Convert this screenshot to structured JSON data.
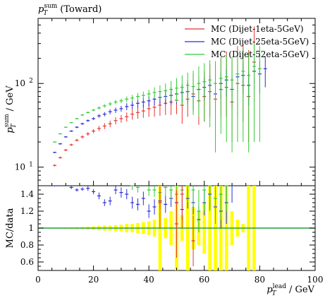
{
  "chart_data": {
    "type": "scatter",
    "title": "p_T^sum (Toward)",
    "title_main": "p",
    "title_sub": "T",
    "title_sup": "sum",
    "title_rest": "(Toward)",
    "xlabel_main": "p",
    "xlabel_sub": "T",
    "xlabel_sup": "lead",
    "xlabel_unit": "/ GeV",
    "ylabel_main": "p",
    "ylabel_sub": "T",
    "ylabel_sup": "sum",
    "ylabel_unit": "/ GeV",
    "ratio_ylabel": "MC/data",
    "xlim": [
      0,
      100
    ],
    "ylim_log": [
      6,
      600
    ],
    "ratio_ylim": [
      0.5,
      1.5
    ],
    "x_ticks": [
      0,
      20,
      40,
      60,
      80,
      100
    ],
    "y_ticks": [
      {
        "v": 10,
        "label": "10",
        "exp": "1"
      },
      {
        "v": 100,
        "label": "10",
        "exp": "2"
      }
    ],
    "ratio_ticks": [
      {
        "v": 0.6,
        "label": "0.6"
      },
      {
        "v": 0.8,
        "label": "0.8"
      },
      {
        "v": 1.0,
        "label": "1"
      },
      {
        "v": 1.2,
        "label": "1.2"
      },
      {
        "v": 1.4,
        "label": "1.4"
      }
    ],
    "legend_position": "top-right",
    "series": [
      {
        "name": "MC (Dijet-1eta-5GeV)",
        "color": "#e8312f",
        "x": [
          6,
          8,
          10,
          12,
          14,
          16,
          18,
          20,
          22,
          24,
          26,
          28,
          30,
          32,
          34,
          36,
          38,
          40,
          42,
          44,
          46,
          48,
          50,
          52,
          54,
          56,
          58,
          60,
          62,
          64,
          66,
          68,
          70,
          72,
          74,
          76,
          78
        ],
        "y": [
          10.5,
          13,
          16,
          18.5,
          21,
          23,
          25,
          27,
          29,
          31,
          33,
          36,
          38,
          40,
          43,
          45,
          47,
          50,
          52,
          55,
          58,
          60,
          63,
          55,
          65,
          75,
          62,
          70,
          80,
          65,
          85,
          90,
          60,
          100,
          95,
          70,
          180
        ],
        "err_lo": [
          0.3,
          0.4,
          0.5,
          0.6,
          0.8,
          1,
          1.2,
          1.5,
          2,
          2.5,
          3,
          3.5,
          4,
          5,
          6,
          7,
          8,
          10,
          12,
          14,
          16,
          18,
          20,
          22,
          25,
          30,
          30,
          35,
          40,
          40,
          45,
          50,
          40,
          60,
          60,
          50,
          120
        ],
        "err_hi": [
          0.3,
          0.4,
          0.5,
          0.6,
          0.8,
          1,
          1.2,
          1.5,
          2,
          2.5,
          3,
          3.5,
          4,
          5,
          6,
          7,
          8,
          10,
          15,
          20,
          25,
          30,
          35,
          40,
          45,
          55,
          60,
          70,
          90,
          100,
          120,
          150,
          130,
          180,
          200,
          180,
          300
        ]
      },
      {
        "name": "MC (Dijet-25eta-5GeV)",
        "color": "#2b2bd9",
        "x": [
          6,
          8,
          10,
          12,
          14,
          16,
          18,
          20,
          22,
          24,
          26,
          28,
          30,
          32,
          34,
          36,
          38,
          40,
          42,
          44,
          46,
          48,
          50,
          52,
          54,
          56,
          58,
          60,
          62,
          64,
          66,
          68,
          70,
          72,
          74,
          76,
          78,
          80,
          82
        ],
        "y": [
          15,
          19,
          23,
          27,
          30,
          33,
          36,
          38,
          41,
          43,
          46,
          48,
          50,
          53,
          55,
          58,
          60,
          62,
          65,
          68,
          70,
          72,
          75,
          78,
          80,
          70,
          85,
          90,
          95,
          75,
          100,
          110,
          85,
          120,
          125,
          95,
          140,
          130,
          150
        ],
        "err_lo": [
          0.3,
          0.4,
          0.5,
          0.6,
          0.8,
          1,
          1.2,
          1.5,
          2,
          2.5,
          3,
          3.5,
          4,
          5,
          6,
          7,
          8,
          9,
          10,
          12,
          14,
          16,
          18,
          20,
          22,
          22,
          25,
          28,
          30,
          28,
          35,
          40,
          35,
          45,
          50,
          40,
          55,
          55,
          60
        ],
        "err_hi": [
          0.3,
          0.4,
          0.5,
          0.6,
          0.8,
          1,
          1.2,
          1.5,
          2,
          2.5,
          3,
          3.5,
          4,
          5,
          6,
          7,
          8,
          9,
          10,
          12,
          14,
          16,
          18,
          20,
          22,
          22,
          25,
          28,
          30,
          28,
          35,
          40,
          35,
          45,
          50,
          40,
          55,
          55,
          60
        ]
      },
      {
        "name": "MC (Dijet-52eta-5GeV)",
        "color": "#33cc33",
        "x": [
          6,
          8,
          10,
          12,
          14,
          16,
          18,
          20,
          22,
          24,
          26,
          28,
          30,
          32,
          34,
          36,
          38,
          40,
          42,
          44,
          46,
          48,
          50,
          52,
          54,
          56,
          58,
          60,
          62,
          64,
          66,
          68,
          70,
          72,
          74,
          76,
          78,
          80
        ],
        "y": [
          20,
          25,
          30,
          34,
          38,
          42,
          45,
          48,
          51,
          54,
          57,
          60,
          62,
          65,
          67,
          70,
          72,
          75,
          78,
          80,
          82,
          85,
          88,
          90,
          95,
          92,
          100,
          105,
          110,
          100,
          115,
          120,
          110,
          130,
          140,
          125,
          160,
          150
        ],
        "err_lo": [
          0.3,
          0.4,
          0.5,
          0.6,
          0.8,
          1,
          1.2,
          1.5,
          2,
          2.5,
          3,
          3.5,
          4,
          5,
          6,
          7,
          8,
          9,
          12,
          15,
          18,
          22,
          28,
          35,
          40,
          50,
          60,
          70,
          80,
          85,
          90,
          100,
          95,
          110,
          120,
          110,
          140,
          130
        ],
        "err_hi": [
          0.3,
          0.4,
          0.5,
          0.6,
          0.8,
          1,
          1.2,
          1.5,
          2,
          2.5,
          3,
          3.5,
          4,
          5,
          6,
          7,
          8,
          9,
          12,
          15,
          18,
          22,
          28,
          35,
          40,
          50,
          60,
          70,
          80,
          85,
          90,
          100,
          95,
          110,
          120,
          110,
          140,
          130
        ]
      }
    ],
    "ratio_series": [
      {
        "name": "MC (Dijet-25eta-5GeV)",
        "color": "#2b2bd9",
        "x": [
          6,
          12,
          14,
          16,
          18,
          20,
          22,
          24,
          26,
          28,
          30,
          32,
          34,
          36,
          38,
          40,
          42,
          44,
          46,
          48,
          50,
          52,
          54,
          56,
          58,
          60,
          62,
          64,
          66,
          68,
          70
        ],
        "y": [
          1.5,
          1.48,
          1.45,
          1.46,
          1.47,
          1.43,
          1.38,
          1.3,
          1.32,
          1.45,
          1.42,
          1.4,
          1.3,
          1.28,
          1.35,
          1.2,
          1.25,
          1.32,
          1.28,
          1.35,
          1.3,
          1.22,
          1.35,
          1.3,
          1.1,
          1.3,
          1.4,
          1.25,
          1.2,
          1.3,
          1.6
        ],
        "err": [
          0.01,
          0.02,
          0.02,
          0.02,
          0.03,
          0.03,
          0.04,
          0.04,
          0.05,
          0.05,
          0.06,
          0.06,
          0.07,
          0.07,
          0.08,
          0.08,
          0.09,
          0.09,
          0.1,
          0.1,
          0.1,
          0.12,
          0.12,
          0.14,
          0.15,
          0.15,
          0.18,
          0.2,
          0.2,
          0.25,
          0.3
        ]
      },
      {
        "name": "MC (Dijet-52eta-5GeV)",
        "color": "#33cc33",
        "x": [
          34,
          36,
          40,
          42,
          44,
          46,
          48,
          50,
          52,
          54,
          56,
          58,
          60,
          62,
          64,
          66,
          68
        ],
        "y": [
          1.5,
          1.48,
          1.45,
          1.45,
          1.42,
          1.48,
          1.45,
          1.4,
          1.45,
          1.5,
          1.45,
          1.2,
          1.45,
          1.5,
          1.35,
          1.4,
          1.5
        ],
        "err": [
          0.05,
          0.06,
          0.07,
          0.08,
          0.1,
          0.1,
          0.12,
          0.15,
          0.15,
          0.2,
          0.2,
          0.25,
          0.25,
          0.3,
          0.3,
          0.3,
          0.3
        ]
      },
      {
        "name": "MC (Dijet-1eta-5GeV)",
        "color": "#e8312f",
        "x": [
          44,
          50,
          52,
          56
        ],
        "y": [
          1.3,
          1.05,
          1.4,
          0.85
        ],
        "err": [
          0.3,
          0.4,
          0.4,
          0.3
        ]
      }
    ],
    "ratio_band": {
      "color": "#ffff00",
      "x": [
        6,
        8,
        10,
        12,
        14,
        16,
        18,
        20,
        22,
        24,
        26,
        28,
        30,
        32,
        34,
        36,
        38,
        40,
        42,
        44,
        46,
        48,
        50,
        52,
        54,
        56,
        58,
        60,
        62,
        64,
        66,
        68,
        70,
        72,
        74,
        76,
        78
      ],
      "half_width": [
        0.005,
        0.005,
        0.006,
        0.008,
        0.01,
        0.012,
        0.015,
        0.02,
        0.025,
        0.03,
        0.03,
        0.035,
        0.04,
        0.05,
        0.05,
        0.06,
        0.07,
        0.08,
        0.1,
        0.5,
        0.12,
        0.2,
        0.5,
        0.15,
        0.5,
        0.25,
        0.2,
        0.3,
        0.5,
        0.5,
        0.5,
        0.5,
        0.2,
        0.1,
        0.05,
        0.5,
        0.5
      ]
    }
  }
}
